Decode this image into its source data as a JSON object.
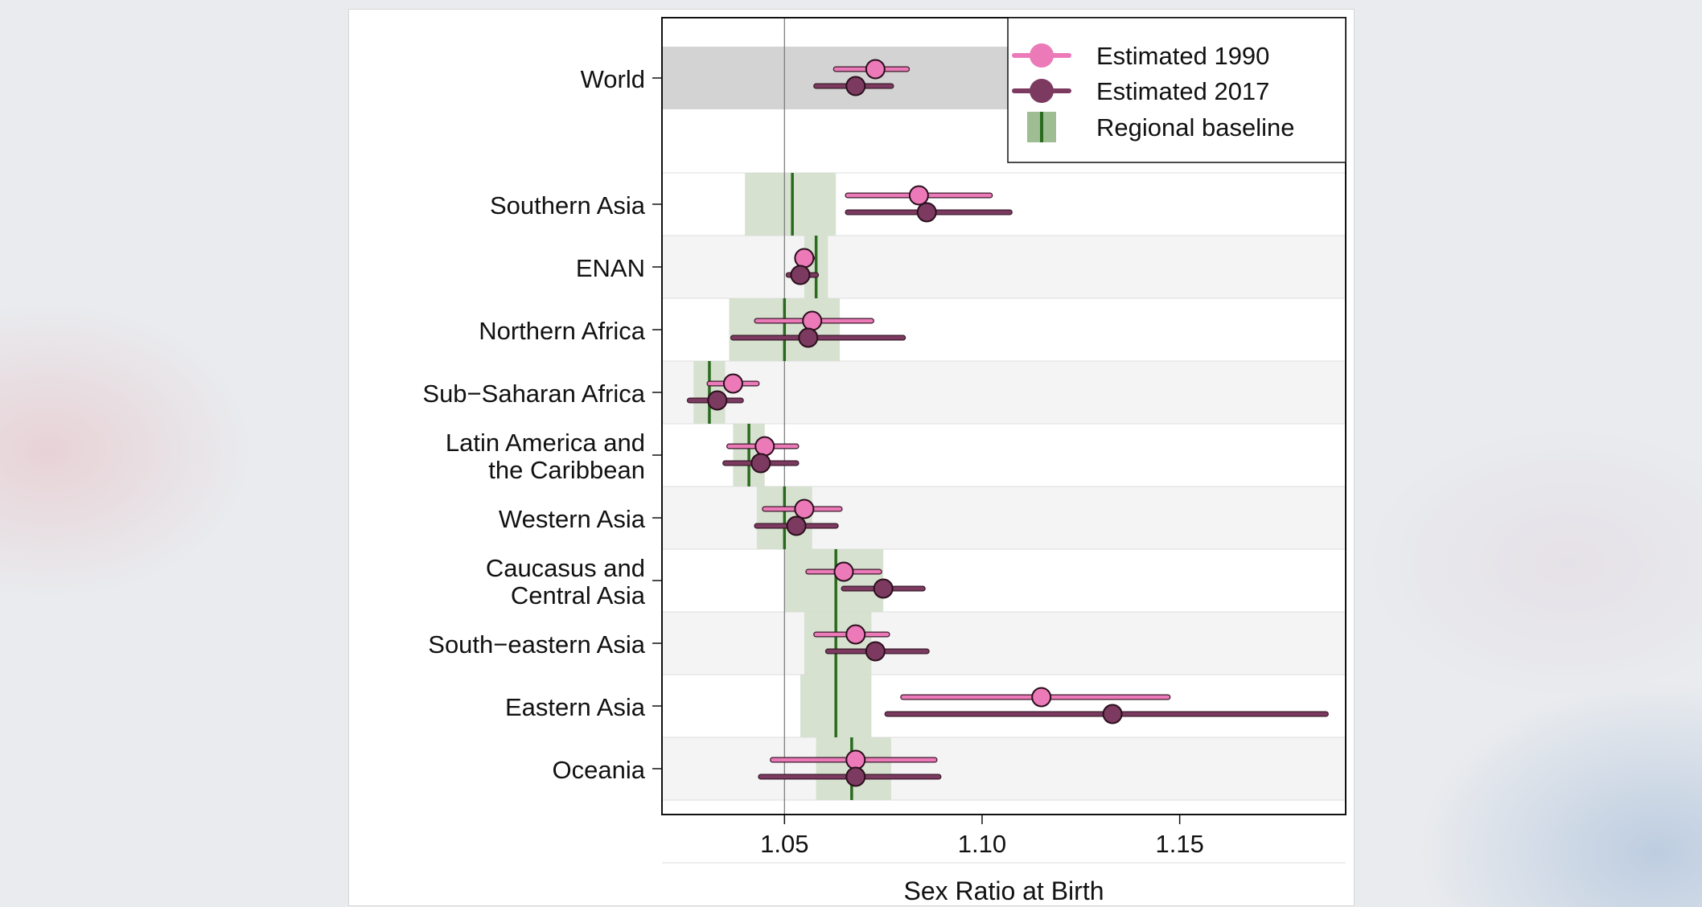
{
  "chart_data": {
    "type": "forest",
    "xlabel": "Sex Ratio at Birth",
    "xlim": [
      1.019,
      1.192
    ],
    "xticks": [
      1.05,
      1.1,
      1.15
    ],
    "xtick_labels": [
      "1.05",
      "1.10",
      "1.15"
    ],
    "reference_line": 1.05,
    "legend": {
      "position": "top-right",
      "entries": [
        "Estimated 1990",
        "Estimated 2017",
        "Regional baseline"
      ]
    },
    "colors": {
      "est1990": "#ec7ab8",
      "est2017": "#7c3a60",
      "baseline_band": "#d4dfcd",
      "baseline_line": "#2a6a1e",
      "world_band": "#d3d3d3",
      "alt_row": "#f4f4f4",
      "ref_line": "#777777"
    },
    "regions": [
      {
        "label": [
          "World"
        ],
        "est1990": [
          1.073,
          1.063,
          1.081
        ],
        "est2017": [
          1.068,
          1.058,
          1.077
        ],
        "baseline": null
      },
      {
        "label": [
          "Southern Asia"
        ],
        "est1990": [
          1.084,
          1.066,
          1.102
        ],
        "est2017": [
          1.086,
          1.066,
          1.107
        ],
        "baseline": [
          1.052,
          1.04,
          1.063
        ]
      },
      {
        "label": [
          "ENAN"
        ],
        "est1990": [
          1.055,
          1.054,
          1.057
        ],
        "est2017": [
          1.054,
          1.051,
          1.058
        ],
        "baseline": [
          1.058,
          1.055,
          1.061
        ]
      },
      {
        "label": [
          "Northern Africa"
        ],
        "est1990": [
          1.057,
          1.043,
          1.072
        ],
        "est2017": [
          1.056,
          1.037,
          1.08
        ],
        "baseline": [
          1.05,
          1.036,
          1.064
        ]
      },
      {
        "label": [
          "Sub−Saharan Africa"
        ],
        "est1990": [
          1.037,
          1.031,
          1.043
        ],
        "est2017": [
          1.033,
          1.026,
          1.039
        ],
        "baseline": [
          1.031,
          1.027,
          1.035
        ]
      },
      {
        "label": [
          "Latin America and",
          "the Caribbean"
        ],
        "est1990": [
          1.045,
          1.036,
          1.053
        ],
        "est2017": [
          1.044,
          1.035,
          1.053
        ],
        "baseline": [
          1.041,
          1.037,
          1.045
        ]
      },
      {
        "label": [
          "Western Asia"
        ],
        "est1990": [
          1.055,
          1.045,
          1.064
        ],
        "est2017": [
          1.053,
          1.043,
          1.063
        ],
        "baseline": [
          1.05,
          1.043,
          1.057
        ]
      },
      {
        "label": [
          "Caucasus and",
          "Central Asia"
        ],
        "est1990": [
          1.065,
          1.056,
          1.074
        ],
        "est2017": [
          1.075,
          1.065,
          1.085
        ],
        "baseline": [
          1.063,
          1.05,
          1.075
        ]
      },
      {
        "label": [
          "South−eastern Asia"
        ],
        "est1990": [
          1.068,
          1.058,
          1.076
        ],
        "est2017": [
          1.073,
          1.061,
          1.086
        ],
        "baseline": [
          1.063,
          1.055,
          1.072
        ]
      },
      {
        "label": [
          "Eastern Asia"
        ],
        "est1990": [
          1.115,
          1.08,
          1.147
        ],
        "est2017": [
          1.133,
          1.076,
          1.187
        ],
        "baseline": [
          1.063,
          1.054,
          1.072
        ]
      },
      {
        "label": [
          "Oceania"
        ],
        "est1990": [
          1.068,
          1.047,
          1.088
        ],
        "est2017": [
          1.068,
          1.044,
          1.089
        ],
        "baseline": [
          1.067,
          1.058,
          1.077
        ]
      }
    ]
  }
}
